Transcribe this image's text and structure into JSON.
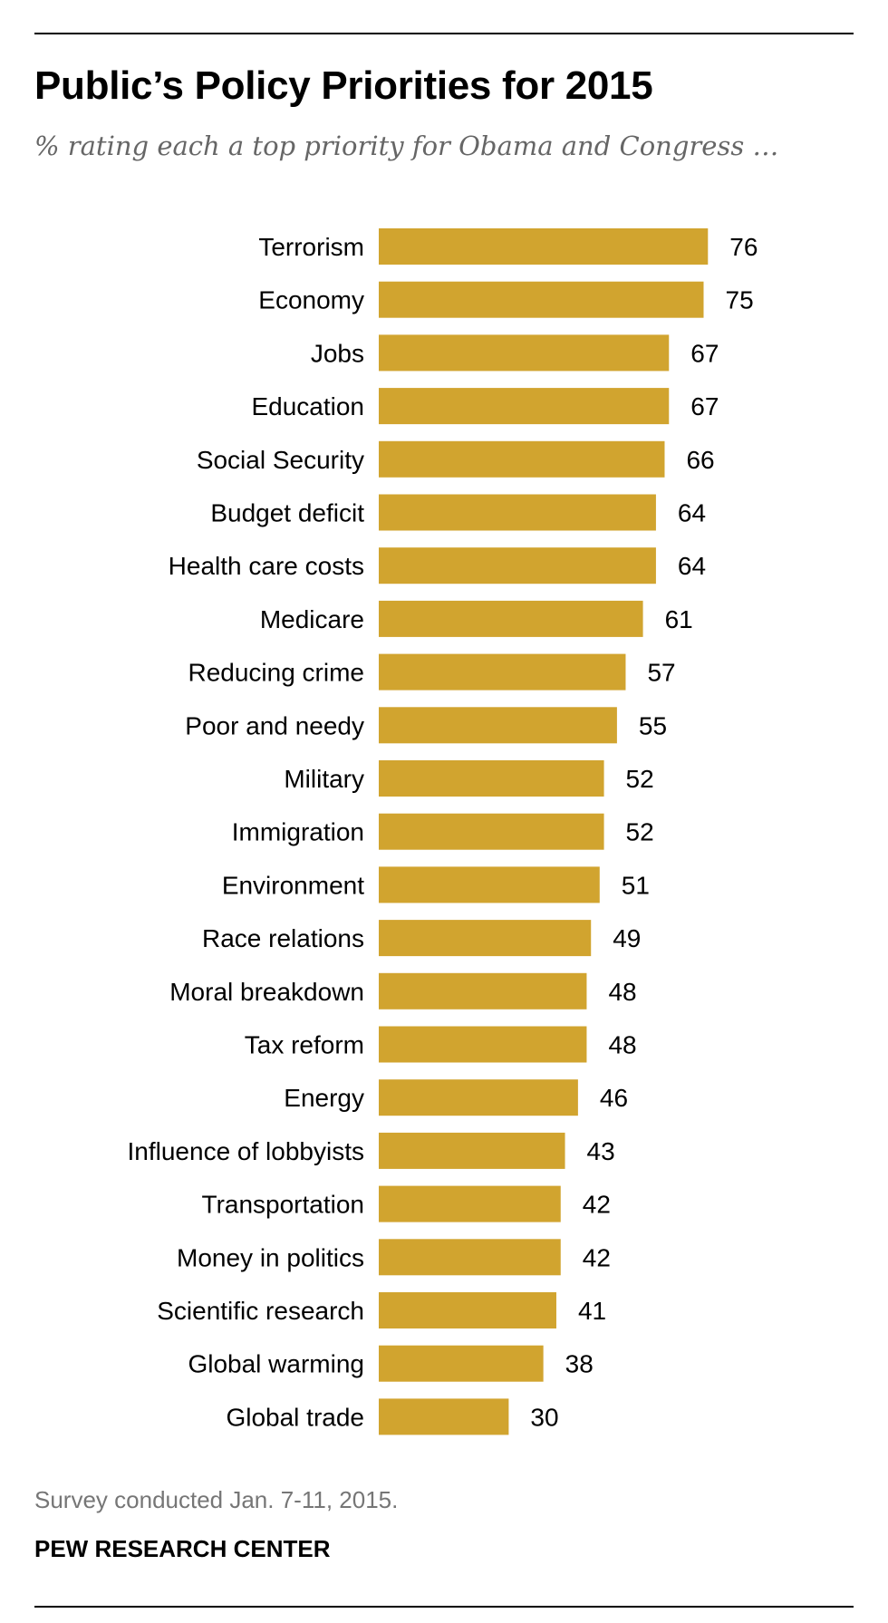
{
  "header": {
    "title": "Public’s Policy Priorities for 2015",
    "subtitle": "% rating each a top priority for Obama and Congress …"
  },
  "footer": {
    "note": "Survey conducted Jan. 7-11, 2015.",
    "source": "PEW RESEARCH CENTER"
  },
  "colors": {
    "bar": "#D1A42F",
    "text": "#000000",
    "subtitle": "#666666",
    "note": "#767676"
  },
  "chart_data": {
    "type": "bar",
    "orientation": "horizontal",
    "title": "Public’s Policy Priorities for 2015",
    "subtitle": "% rating each a top priority for Obama and Congress …",
    "xlabel": "",
    "ylabel": "",
    "xlim": [
      0,
      100
    ],
    "grid": false,
    "data_labels": true,
    "categories": [
      "Terrorism",
      "Economy",
      "Jobs",
      "Education",
      "Social Security",
      "Budget deficit",
      "Health care costs",
      "Medicare",
      "Reducing crime",
      "Poor and needy",
      "Military",
      "Immigration",
      "Environment",
      "Race relations",
      "Moral breakdown",
      "Tax reform",
      "Energy",
      "Influence of lobbyists",
      "Transportation",
      "Money in politics",
      "Scientific research",
      "Global warming",
      "Global trade"
    ],
    "values": [
      76,
      75,
      67,
      67,
      66,
      64,
      64,
      61,
      57,
      55,
      52,
      52,
      51,
      49,
      48,
      48,
      46,
      43,
      42,
      42,
      41,
      38,
      30
    ]
  }
}
